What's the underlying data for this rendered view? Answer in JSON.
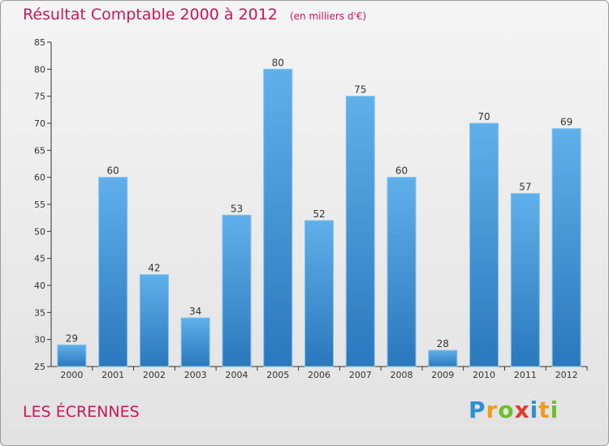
{
  "title": "Résultat Comptable 2000 à 2012",
  "unit_label": "(en milliers d'€)",
  "commune": "LES ÉCRENNES",
  "logo": {
    "letters": [
      "P",
      "r",
      "o",
      "x",
      "i",
      "t",
      "i"
    ],
    "colors": [
      "#2e8fd6",
      "#f29a1c",
      "#6cbf2a",
      "#e23a2c",
      "#2e8fd6",
      "#f29a1c",
      "#6cbf2a"
    ]
  },
  "colors": {
    "bar_light": "#5fb0ea",
    "bar_dark": "#2a78bd",
    "title": "#c8175c",
    "axis": "#333333"
  },
  "chart_data": {
    "type": "bar",
    "title": "Résultat Comptable 2000 à 2012",
    "xlabel": "",
    "ylabel": "",
    "categories": [
      "2000",
      "2001",
      "2002",
      "2003",
      "2004",
      "2005",
      "2006",
      "2007",
      "2008",
      "2009",
      "2010",
      "2011",
      "2012"
    ],
    "values": [
      29,
      60,
      42,
      34,
      53,
      80,
      52,
      75,
      60,
      28,
      70,
      57,
      69
    ],
    "ylim": [
      25,
      85
    ],
    "yticks": [
      25,
      30,
      35,
      40,
      45,
      50,
      55,
      60,
      65,
      70,
      75,
      80,
      85
    ],
    "grid": false,
    "legend": "none"
  }
}
